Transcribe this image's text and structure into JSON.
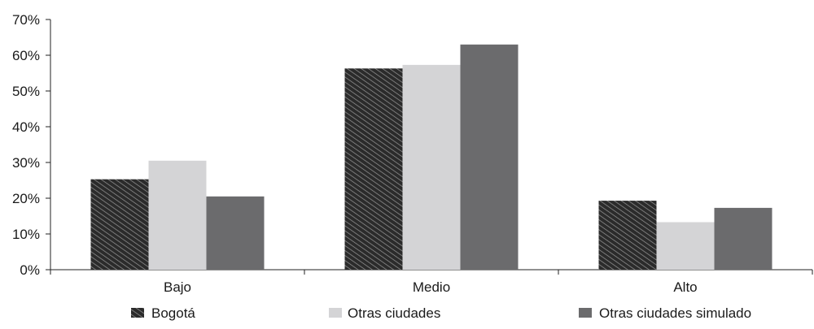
{
  "chart_data": {
    "type": "bar",
    "title": "",
    "xlabel": "",
    "ylabel": "",
    "categories": [
      "Bajo",
      "Medio",
      "Alto"
    ],
    "series": [
      {
        "name": "Bogotá",
        "values": [
          25.3,
          56.3,
          19.3
        ],
        "color": "#2b2b2b",
        "fill": "hatched"
      },
      {
        "name": "Otras ciudades",
        "values": [
          30.5,
          57.3,
          13.3
        ],
        "color": "#d4d4d6",
        "fill": "solid"
      },
      {
        "name": "Otras ciudades simulado",
        "values": [
          20.5,
          63.0,
          17.3
        ],
        "color": "#6b6b6d",
        "fill": "solid"
      }
    ],
    "ylim": [
      0,
      70
    ],
    "yticks": [
      0,
      10,
      20,
      30,
      40,
      50,
      60,
      70
    ],
    "ytick_labels": [
      "0%",
      "10%",
      "20%",
      "30%",
      "40%",
      "50%",
      "60%",
      "70%"
    ],
    "grid": false,
    "legend_position": "bottom"
  }
}
